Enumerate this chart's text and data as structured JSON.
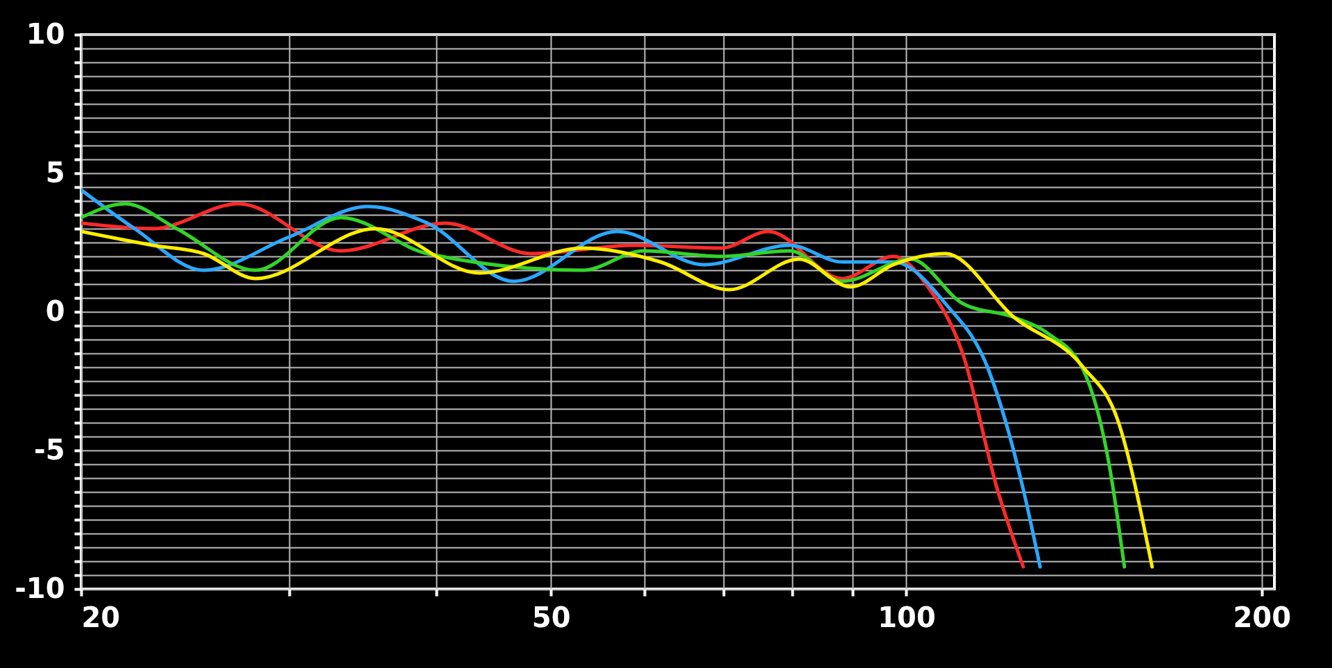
{
  "chart_data": {
    "type": "line",
    "log": "x",
    "grid": true,
    "legend": false,
    "line_style": "solid",
    "marker": "none",
    "xlim": [
      20,
      205
    ],
    "xticks": [
      20,
      {
        "value": 30,
        "label": null
      },
      {
        "value": 40,
        "label": null
      },
      50,
      {
        "value": 60,
        "label": null
      },
      {
        "value": 70,
        "label": null
      },
      {
        "value": 80,
        "label": null
      },
      {
        "value": 90,
        "label": null
      },
      100,
      200
    ],
    "ylim": [
      -10,
      10
    ],
    "yticks": [
      -10,
      {
        "value": -9.5,
        "label": null
      },
      {
        "value": -9,
        "label": null
      },
      {
        "value": -8.5,
        "label": null
      },
      {
        "value": -8,
        "label": null
      },
      {
        "value": -7.5,
        "label": null
      },
      {
        "value": -7,
        "label": null
      },
      {
        "value": -6.5,
        "label": null
      },
      {
        "value": -6,
        "label": null
      },
      {
        "value": -5.5,
        "label": null
      },
      -5,
      {
        "value": -4.5,
        "label": null
      },
      {
        "value": -4,
        "label": null
      },
      {
        "value": -3.5,
        "label": null
      },
      {
        "value": -3,
        "label": null
      },
      {
        "value": -2.5,
        "label": null
      },
      {
        "value": -2,
        "label": null
      },
      {
        "value": -1.5,
        "label": null
      },
      {
        "value": -1,
        "label": null
      },
      {
        "value": -0.5,
        "label": null
      },
      0,
      {
        "value": 0.5,
        "label": null
      },
      {
        "value": 1,
        "label": null
      },
      {
        "value": 1.5,
        "label": null
      },
      {
        "value": 2,
        "label": null
      },
      {
        "value": 2.5,
        "label": null
      },
      {
        "value": 3,
        "label": null
      },
      {
        "value": 3.5,
        "label": null
      },
      {
        "value": 4,
        "label": null
      },
      {
        "value": 4.5,
        "label": null
      },
      5,
      {
        "value": 5.5,
        "label": null
      },
      {
        "value": 6,
        "label": null
      },
      {
        "value": 6.5,
        "label": null
      },
      {
        "value": 7,
        "label": null
      },
      {
        "value": 7.5,
        "label": null
      },
      {
        "value": 8,
        "label": null
      },
      {
        "value": 8.5,
        "label": null
      },
      {
        "value": 9,
        "label": null
      },
      {
        "value": 9.5,
        "label": null
      },
      10
    ],
    "series": [
      {
        "color": "#ff2a2a",
        "x": [
          20,
          23,
          27.2,
          33.2,
          40.7,
          48.1,
          58.9,
          69.7,
          76.4,
          88.2,
          97.5,
          104.3,
          111.6,
          119.4,
          125.6
        ],
        "values": [
          3.2,
          3.0,
          3.9,
          2.2,
          3.2,
          2.1,
          2.4,
          2.3,
          2.9,
          1.2,
          2.0,
          0.9,
          -1.5,
          -6.4,
          -9.2
        ]
      },
      {
        "color": "#2aa8ff",
        "x": [
          20,
          22.2,
          25.4,
          30,
          35,
          39.3,
          46.5,
          56.9,
          67.4,
          79.7,
          88.2,
          97.5,
          107.9,
          117.4,
          125.6,
          129.8
        ],
        "values": [
          4.4,
          3.0,
          1.5,
          2.7,
          3.8,
          3.2,
          1.1,
          2.9,
          1.7,
          2.4,
          1.8,
          1.8,
          0.3,
          -2.1,
          -6.4,
          -9.2
        ]
      },
      {
        "color": "#33d42a",
        "x": [
          20,
          21.8,
          24.1,
          28.1,
          33.2,
          39.3,
          53.2,
          59.9,
          69.7,
          79.7,
          88.2,
          100.9,
          111.6,
          123.4,
          132,
          141.2,
          148.5,
          153
        ],
        "values": [
          3.4,
          3.9,
          3.0,
          1.5,
          3.4,
          2.1,
          1.5,
          2.2,
          2.0,
          2.2,
          1.1,
          1.9,
          0.3,
          -0.2,
          -0.8,
          -2.1,
          -5.5,
          -9.2
        ]
      },
      {
        "color": "#ffee00",
        "x": [
          20,
          23,
          25.4,
          28.1,
          35.5,
          43.5,
          53.2,
          61.9,
          70.8,
          81.1,
          89.7,
          97.5,
          107.9,
          123.4,
          141.2,
          151,
          161.5
        ],
        "values": [
          2.9,
          2.4,
          2.1,
          1.2,
          3.0,
          1.4,
          2.3,
          1.8,
          0.8,
          1.9,
          0.9,
          1.7,
          2.1,
          -0.2,
          -2.0,
          -3.9,
          -9.2
        ]
      }
    ]
  }
}
